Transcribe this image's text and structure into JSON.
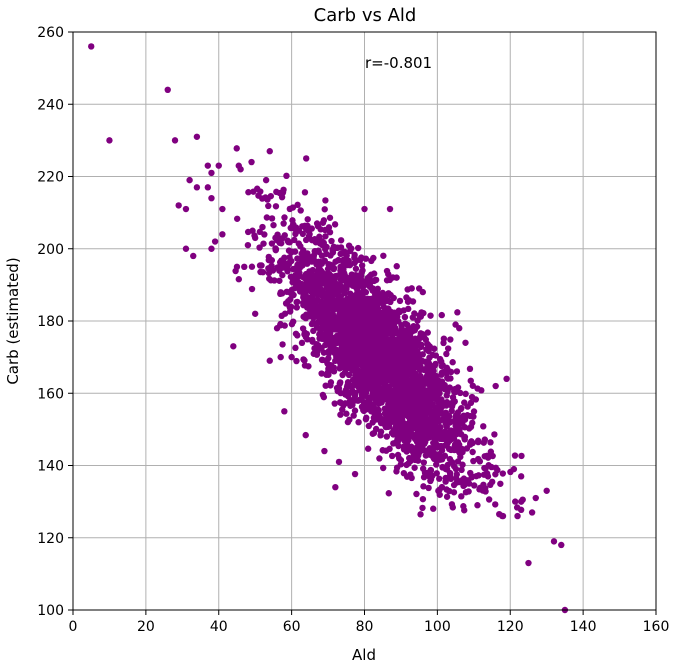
{
  "chart_data": {
    "type": "scatter",
    "title": "Carb vs Ald",
    "xlabel": "Ald",
    "ylabel": "Carb (estimated)",
    "xlim": [
      0,
      160
    ],
    "ylim": [
      100,
      260
    ],
    "xticks": [
      "0",
      "20",
      "40",
      "60",
      "80",
      "100",
      "120",
      "140",
      "160"
    ],
    "yticks": [
      "100",
      "120",
      "140",
      "160",
      "180",
      "200",
      "220",
      "240",
      "260"
    ],
    "grid": true,
    "color": "#800080",
    "annotation": "r=-0.801",
    "points": [
      [
        5,
        256
      ],
      [
        10,
        230
      ],
      [
        26,
        244
      ],
      [
        28,
        230
      ],
      [
        29,
        212
      ],
      [
        31,
        211
      ],
      [
        32,
        219
      ],
      [
        34,
        231
      ],
      [
        34,
        217
      ],
      [
        37,
        223
      ],
      [
        37,
        217
      ],
      [
        38,
        214
      ],
      [
        38,
        221
      ],
      [
        39,
        202
      ],
      [
        40,
        223
      ],
      [
        41,
        204
      ],
      [
        41,
        211
      ],
      [
        31,
        200
      ],
      [
        33,
        198
      ],
      [
        38,
        200
      ],
      [
        44,
        173
      ],
      [
        45,
        195
      ],
      [
        46,
        222
      ],
      [
        47,
        195
      ],
      [
        48,
        201
      ],
      [
        49,
        224
      ],
      [
        50,
        182
      ],
      [
        50,
        203
      ],
      [
        52,
        206
      ],
      [
        53,
        219
      ],
      [
        54,
        227
      ],
      [
        54,
        169
      ],
      [
        56,
        178
      ],
      [
        57,
        170
      ],
      [
        58,
        155
      ],
      [
        60,
        170
      ],
      [
        62,
        205
      ],
      [
        64,
        225
      ],
      [
        67,
        207
      ],
      [
        69,
        144
      ],
      [
        72,
        134
      ],
      [
        73,
        141
      ],
      [
        80,
        211
      ],
      [
        87,
        211
      ],
      [
        95,
        189
      ],
      [
        96,
        188
      ],
      [
        105,
        179
      ],
      [
        106,
        178
      ],
      [
        116,
        162
      ],
      [
        119,
        164
      ],
      [
        118,
        126
      ],
      [
        122,
        126
      ],
      [
        123,
        137
      ],
      [
        123,
        130
      ],
      [
        125,
        113
      ],
      [
        126,
        127
      ],
      [
        127,
        131
      ],
      [
        130,
        133
      ],
      [
        132,
        119
      ],
      [
        134,
        118
      ],
      [
        135,
        100
      ],
      [
        111,
        129
      ],
      [
        113,
        133
      ],
      [
        121,
        139
      ]
    ],
    "cluster": {
      "n": 3100,
      "mean_x": 84,
      "mean_y": 170,
      "sd_x": 13,
      "sd_y": 17,
      "r": -0.801,
      "x_range": [
        44,
        124
      ],
      "y_range": [
        126,
        228
      ]
    }
  }
}
